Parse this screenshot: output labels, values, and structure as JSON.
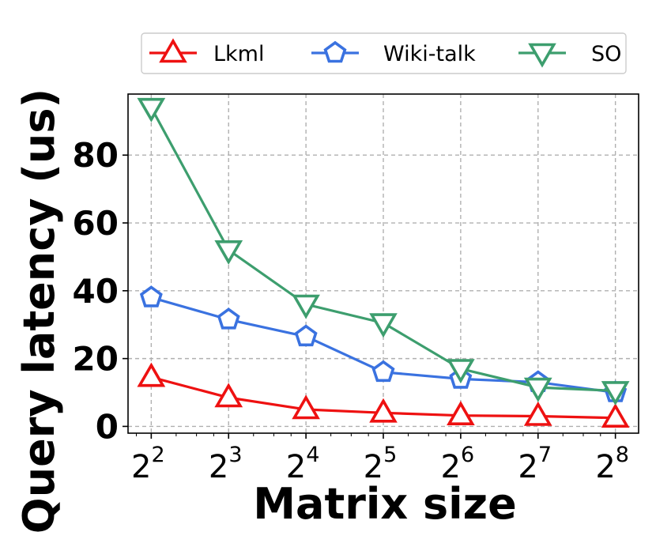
{
  "chart_data": {
    "type": "line",
    "xlabel": "Matrix size",
    "ylabel": "Query latency (us)",
    "x_scale": "log2",
    "x": [
      4,
      8,
      16,
      32,
      64,
      128,
      256
    ],
    "x_tick_base": "2",
    "x_tick_exponents": [
      "2",
      "3",
      "4",
      "5",
      "6",
      "7",
      "8"
    ],
    "ylim": [
      -2,
      98
    ],
    "y_ticks": [
      "0",
      "20",
      "40",
      "60",
      "80"
    ],
    "grid": true,
    "legend_position": "top",
    "series": [
      {
        "name": "Lkml",
        "color": "#ee1111",
        "marker": "triangle-up",
        "values": [
          14.5,
          8.5,
          5.0,
          4.0,
          3.2,
          3.0,
          2.5
        ]
      },
      {
        "name": "Wiki-talk",
        "color": "#3a72e0",
        "marker": "pentagon",
        "values": [
          38.0,
          31.5,
          26.5,
          16.0,
          14.0,
          13.0,
          10.0
        ]
      },
      {
        "name": "SO",
        "color": "#3d9e6e",
        "marker": "triangle-down",
        "values": [
          94.0,
          52.0,
          36.0,
          30.5,
          17.0,
          11.5,
          10.5
        ]
      }
    ]
  }
}
